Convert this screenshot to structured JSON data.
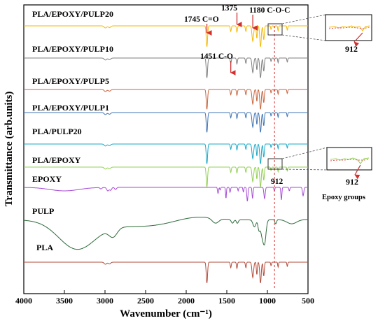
{
  "chart_data": {
    "type": "line",
    "title": "",
    "xlabel": "Wavenumber (cm⁻¹)",
    "ylabel": "Transmittance (arb.units)",
    "xlim": [
      4000,
      500
    ],
    "xticks": [
      4000,
      3500,
      3000,
      2500,
      2000,
      1500,
      1000,
      500
    ],
    "xticklabels": [
      "4000",
      "3500",
      "3000",
      "2500",
      "2000",
      "1500",
      "1000",
      "500"
    ],
    "grid": false,
    "series": [
      {
        "name": "PLA/EPOXY/PULP20",
        "color": "#f5b800"
      },
      {
        "name": "PLA/EPOXY/PULP10",
        "color": "#7f7f7f"
      },
      {
        "name": "PLA/EPOXY/PULP5",
        "color": "#c8643c"
      },
      {
        "name": "PLA/EPOXY/PULP1",
        "color": "#3f74b4"
      },
      {
        "name": "PLA/PULP20",
        "color": "#1aa8c8"
      },
      {
        "name": "PLA/EPOXY",
        "color": "#92d050"
      },
      {
        "name": "EPOXY",
        "color": "#a64bd6"
      },
      {
        "name": "PULP",
        "color": "#2d6a3a"
      },
      {
        "name": "PLA",
        "color": "#b24b3a"
      }
    ],
    "annotations": [
      {
        "text": "1745 C=O",
        "x": 1745
      },
      {
        "text": "1375",
        "x": 1375
      },
      {
        "text": "1180 C-O-C",
        "x": 1180
      },
      {
        "text": "1451 C-O",
        "x": 1451
      },
      {
        "text": "912",
        "x": 912
      }
    ],
    "reference_line": {
      "x": 912,
      "color": "#e05050",
      "style": "dashed"
    },
    "inset_label_top": "912",
    "inset_label_bottom": "912",
    "epoxy_label": "Epoxy groups"
  }
}
